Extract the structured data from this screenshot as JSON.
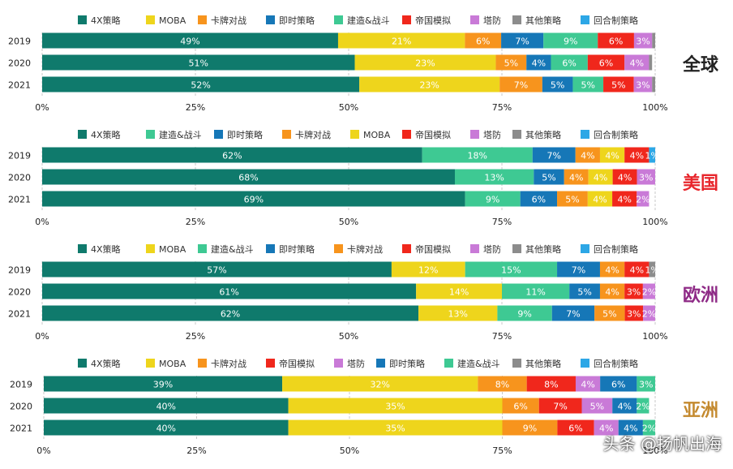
{
  "segment_colors": {
    "4X策略": "#0f7a6c",
    "MOBA": "#eed51c",
    "卡牌对战": "#f7941d",
    "即时策略": "#1677b7",
    "建造&战斗": "#3ec993",
    "帝国模拟": "#f0271c",
    "塔防": "#c97ad7",
    "其他策略": "#8c8c8c",
    "回合制策略": "#2da7e6"
  },
  "region_colors": [
    "#222222",
    "#e8262c",
    "#8e2a86",
    "#c48a2f"
  ],
  "watermark": "头条 @扬帆出海",
  "chart_data": [
    {
      "type": "bar",
      "orientation": "horizontal-stacked-100",
      "region": "全球",
      "legend": [
        "4X策略",
        "MOBA",
        "卡牌对战",
        "即时策略",
        "建造&战斗",
        "帝国模拟",
        "塔防",
        "其他策略",
        "回合制策略"
      ],
      "categories": [
        "2019",
        "2020",
        "2021"
      ],
      "series": [
        {
          "name": "4X策略",
          "values": [
            49,
            51,
            52
          ]
        },
        {
          "name": "MOBA",
          "values": [
            21,
            23,
            23
          ]
        },
        {
          "name": "卡牌对战",
          "values": [
            6,
            5,
            7
          ]
        },
        {
          "name": "即时策略",
          "values": [
            7,
            4,
            5
          ]
        },
        {
          "name": "建造&战斗",
          "values": [
            9,
            6,
            5
          ]
        },
        {
          "name": "帝国模拟",
          "values": [
            6,
            6,
            5
          ]
        },
        {
          "name": "塔防",
          "values": [
            3,
            4,
            3
          ]
        },
        {
          "name": "其他策略",
          "values": [
            0.5,
            0.5,
            0.5
          ]
        },
        {
          "name": "回合制策略",
          "values": [
            0,
            0,
            0
          ]
        }
      ],
      "xlim": [
        0,
        100
      ],
      "xticks": [
        "0%",
        "25%",
        "50%",
        "75%",
        "100%"
      ]
    },
    {
      "type": "bar",
      "orientation": "horizontal-stacked-100",
      "region": "美国",
      "legend": [
        "4X策略",
        "建造&战斗",
        "即时策略",
        "卡牌对战",
        "MOBA",
        "帝国模拟",
        "塔防",
        "其他策略",
        "回合制策略"
      ],
      "categories": [
        "2019",
        "2020",
        "2021"
      ],
      "series": [
        {
          "name": "4X策略",
          "values": [
            62,
            68,
            69
          ]
        },
        {
          "name": "建造&战斗",
          "values": [
            18,
            13,
            9
          ]
        },
        {
          "name": "即时策略",
          "values": [
            7,
            5,
            6
          ]
        },
        {
          "name": "卡牌对战",
          "values": [
            4,
            4,
            5
          ]
        },
        {
          "name": "MOBA",
          "values": [
            4,
            4,
            4
          ]
        },
        {
          "name": "帝国模拟",
          "values": [
            4,
            4,
            4
          ]
        },
        {
          "name": "塔防",
          "values": [
            0,
            3,
            2
          ]
        },
        {
          "name": "其他策略",
          "values": [
            0,
            0,
            0
          ]
        },
        {
          "name": "回合制策略",
          "values": [
            1,
            0,
            0
          ]
        }
      ],
      "xlim": [
        0,
        100
      ],
      "xticks": [
        "0%",
        "25%",
        "50%",
        "75%",
        "100%"
      ]
    },
    {
      "type": "bar",
      "orientation": "horizontal-stacked-100",
      "region": "欧洲",
      "legend": [
        "4X策略",
        "MOBA",
        "建造&战斗",
        "即时策略",
        "卡牌对战",
        "帝国模拟",
        "塔防",
        "其他策略",
        "回合制策略"
      ],
      "categories": [
        "2019",
        "2020",
        "2021"
      ],
      "series": [
        {
          "name": "4X策略",
          "values": [
            57,
            61,
            62
          ]
        },
        {
          "name": "MOBA",
          "values": [
            12,
            14,
            13
          ]
        },
        {
          "name": "建造&战斗",
          "values": [
            15,
            11,
            9
          ]
        },
        {
          "name": "即时策略",
          "values": [
            7,
            5,
            7
          ]
        },
        {
          "name": "卡牌对战",
          "values": [
            4,
            4,
            5
          ]
        },
        {
          "name": "帝国模拟",
          "values": [
            4,
            3,
            3
          ]
        },
        {
          "name": "塔防",
          "values": [
            0,
            2,
            2
          ]
        },
        {
          "name": "其他策略",
          "values": [
            1,
            0,
            0
          ]
        },
        {
          "name": "回合制策略",
          "values": [
            0,
            0,
            0
          ]
        }
      ],
      "xlim": [
        0,
        100
      ],
      "xticks": [
        "0%",
        "25%",
        "50%",
        "75%",
        "100%"
      ]
    },
    {
      "type": "bar",
      "orientation": "horizontal-stacked-100",
      "region": "亚洲",
      "legend": [
        "4X策略",
        "MOBA",
        "卡牌对战",
        "帝国模拟",
        "塔防",
        "即时策略",
        "建造&战斗",
        "其他策略",
        "回合制策略"
      ],
      "categories": [
        "2019",
        "2020",
        "2021"
      ],
      "series": [
        {
          "name": "4X策略",
          "values": [
            39,
            40,
            40
          ]
        },
        {
          "name": "MOBA",
          "values": [
            32,
            35,
            35
          ]
        },
        {
          "name": "卡牌对战",
          "values": [
            8,
            6,
            9
          ]
        },
        {
          "name": "帝国模拟",
          "values": [
            8,
            7,
            6
          ]
        },
        {
          "name": "塔防",
          "values": [
            4,
            5,
            4
          ]
        },
        {
          "name": "即时策略",
          "values": [
            6,
            4,
            4
          ]
        },
        {
          "name": "建造&战斗",
          "values": [
            3,
            2,
            2
          ]
        },
        {
          "name": "其他策略",
          "values": [
            0,
            0,
            0
          ]
        },
        {
          "name": "回合制策略",
          "values": [
            0,
            0,
            0
          ]
        }
      ],
      "xlim": [
        0,
        100
      ],
      "xticks": [
        "0%",
        "25%",
        "50%",
        "75%",
        "100%"
      ]
    }
  ]
}
